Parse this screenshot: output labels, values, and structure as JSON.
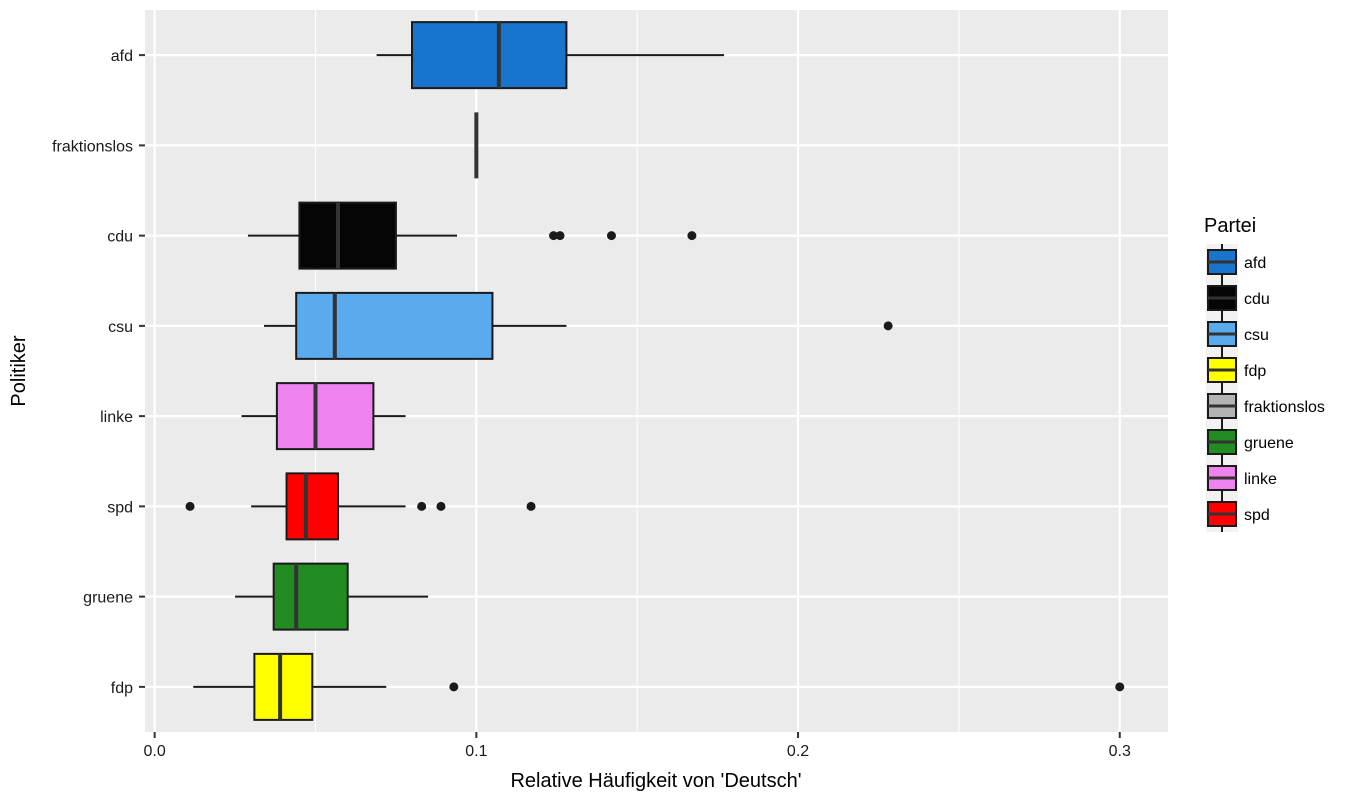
{
  "chart_data": {
    "type": "boxplot",
    "orientation": "horizontal",
    "xlabel": "Relative Häufigkeit von 'Deutsch'",
    "ylabel": "Politiker",
    "xlim": [
      -0.003,
      0.315
    ],
    "x_ticks": [
      0.0,
      0.1,
      0.2,
      0.3
    ],
    "x_tick_labels": [
      "0.0",
      "0.1",
      "0.2",
      "0.3"
    ],
    "grid": true,
    "legend": {
      "title": "Partei",
      "position": "right",
      "entries": [
        {
          "label": "afd",
          "color": "#1874cd"
        },
        {
          "label": "cdu",
          "color": "#050505"
        },
        {
          "label": "csu",
          "color": "#5aabee"
        },
        {
          "label": "fdp",
          "color": "#ffff00"
        },
        {
          "label": "fraktionslos",
          "color": "#b3b3b3"
        },
        {
          "label": "gruene",
          "color": "#228b22"
        },
        {
          "label": "linke",
          "color": "#ee82ee"
        },
        {
          "label": "spd",
          "color": "#ff0000"
        }
      ]
    },
    "categories": [
      "afd",
      "fraktionslos",
      "cdu",
      "csu",
      "linke",
      "spd",
      "gruene",
      "fdp"
    ],
    "boxes": [
      {
        "category": "afd",
        "color": "#1874cd",
        "whisker_low": 0.069,
        "q1": 0.08,
        "median": 0.107,
        "q3": 0.128,
        "whisker_high": 0.177,
        "outliers": []
      },
      {
        "category": "fraktionslos",
        "color": "#b3b3b3",
        "whisker_low": 0.1,
        "q1": 0.1,
        "median": 0.1,
        "q3": 0.1,
        "whisker_high": 0.1,
        "outliers": []
      },
      {
        "category": "cdu",
        "color": "#050505",
        "whisker_low": 0.029,
        "q1": 0.045,
        "median": 0.057,
        "q3": 0.075,
        "whisker_high": 0.094,
        "outliers": [
          0.124,
          0.126,
          0.142,
          0.167
        ]
      },
      {
        "category": "csu",
        "color": "#5aabee",
        "whisker_low": 0.034,
        "q1": 0.044,
        "median": 0.056,
        "q3": 0.105,
        "whisker_high": 0.128,
        "outliers": [
          0.228
        ]
      },
      {
        "category": "linke",
        "color": "#ee82ee",
        "whisker_low": 0.027,
        "q1": 0.038,
        "median": 0.05,
        "q3": 0.068,
        "whisker_high": 0.078,
        "outliers": []
      },
      {
        "category": "spd",
        "color": "#ff0000",
        "whisker_low": 0.03,
        "q1": 0.041,
        "median": 0.047,
        "q3": 0.057,
        "whisker_high": 0.078,
        "outliers": [
          0.011,
          0.083,
          0.089,
          0.117
        ]
      },
      {
        "category": "gruene",
        "color": "#228b22",
        "whisker_low": 0.025,
        "q1": 0.037,
        "median": 0.044,
        "q3": 0.06,
        "whisker_high": 0.085,
        "outliers": []
      },
      {
        "category": "fdp",
        "color": "#ffff00",
        "whisker_low": 0.012,
        "q1": 0.031,
        "median": 0.039,
        "q3": 0.049,
        "whisker_high": 0.072,
        "outliers": [
          0.093,
          0.3
        ]
      }
    ],
    "colors": {
      "panel_background": "#ebebeb",
      "grid_major": "#ffffff",
      "box_border": "#1a1a1a",
      "outlier": "#1a1a1a"
    }
  }
}
